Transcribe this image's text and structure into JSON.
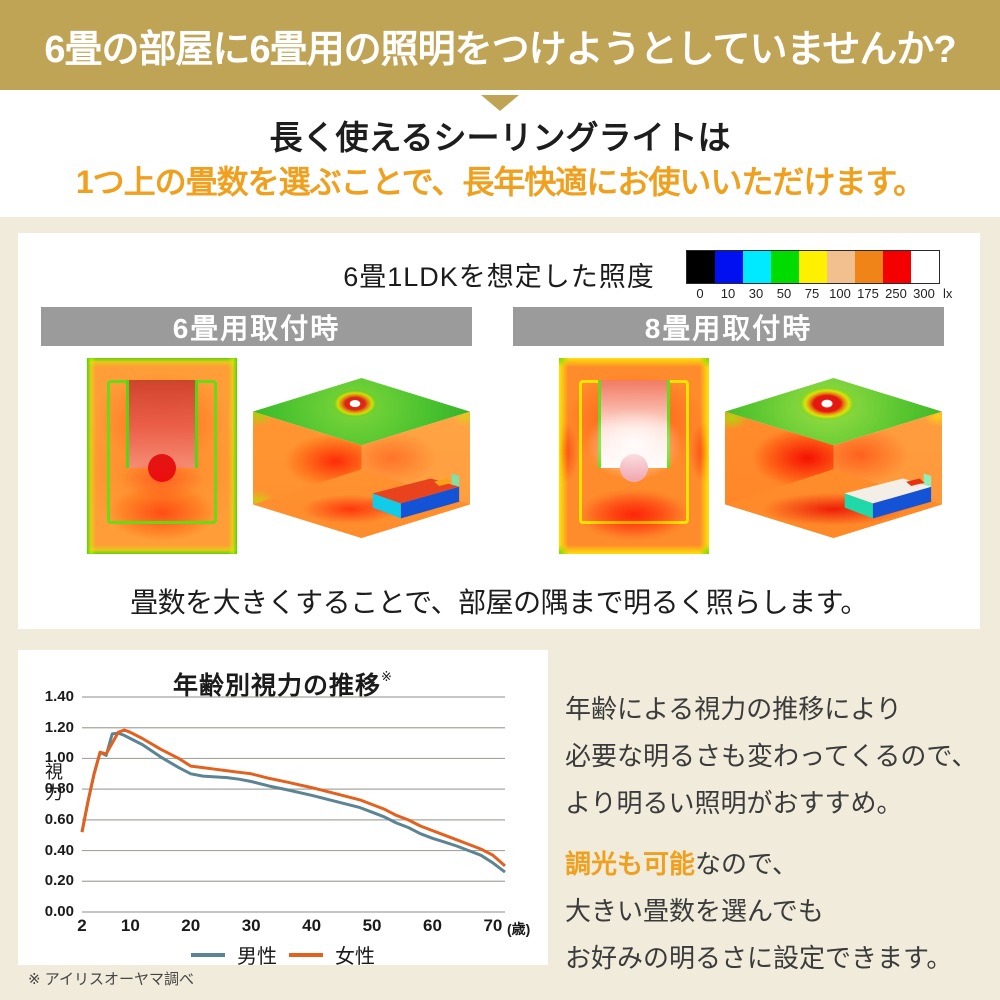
{
  "banner": {
    "text": "6畳の部屋に6畳用の照明をつけようとしていませんか?",
    "bg": "#bfa456",
    "text_color": "#ffffff"
  },
  "intro": {
    "line1": "長く使えるシーリングライトは",
    "line2": "1つ上の畳数を選ぶことで、長年快適にお使いいただけます。",
    "accent_color": "#efa01f"
  },
  "illuminance_card": {
    "title": "6畳1LDKを想定した照度",
    "lux_scale": {
      "unit": "lx",
      "stops": [
        {
          "color": "#000000",
          "label": "0"
        },
        {
          "color": "#0010f0",
          "label": "10"
        },
        {
          "color": "#00eaff",
          "label": "30"
        },
        {
          "color": "#00dc00",
          "label": "50"
        },
        {
          "color": "#fff000",
          "label": "75"
        },
        {
          "color": "#f2bf8e",
          "label": "100"
        },
        {
          "color": "#f08418",
          "label": "175"
        },
        {
          "color": "#f50000",
          "label": "250"
        },
        {
          "color": "#ffffff",
          "label": "300"
        }
      ]
    },
    "panels": [
      {
        "header": "6畳用取付時"
      },
      {
        "header": "8畳用取付時"
      }
    ],
    "caption": "畳数を大きくすることで、部屋の隅まで明るく照らします。"
  },
  "vision_section": {
    "note_lines": [
      "年齢による視力の推移により",
      "必要な明るさも変わってくるので、",
      "より明るい照明がおすすめ。"
    ],
    "note2_highlight": "調光も可能",
    "note2_rest": "なので、",
    "note2_lines": [
      "大きい畳数を選んでも",
      "お好みの明るさに設定できます。"
    ],
    "footnote": "※ アイリスオーヤマ調べ"
  },
  "chart_data": {
    "type": "line",
    "title": "年齢別視力の推移",
    "title_superscript": "※",
    "ylabel": "視力",
    "xlabel_suffix": "(歳)",
    "xlim": [
      2,
      72
    ],
    "ylim": [
      0,
      1.4
    ],
    "grid": "horizontal",
    "legend_position": "bottom",
    "x_ticks": [
      2,
      10,
      20,
      30,
      40,
      50,
      60,
      70
    ],
    "y_ticks": [
      "0.00",
      "0.20",
      "0.40",
      "0.60",
      "0.80",
      "1.00",
      "1.20",
      "1.40"
    ],
    "x": [
      2,
      3,
      4,
      5,
      6,
      7,
      8,
      9,
      10,
      12,
      15,
      18,
      20,
      22,
      24,
      26,
      28,
      30,
      33,
      36,
      40,
      44,
      48,
      50,
      52,
      54,
      56,
      58,
      60,
      62,
      64,
      66,
      68,
      70,
      72
    ],
    "series": [
      {
        "name": "男性",
        "color": "#5b8494",
        "values": [
          0.52,
          0.72,
          0.9,
          1.04,
          1.02,
          1.16,
          1.165,
          1.15,
          1.13,
          1.09,
          1.01,
          0.94,
          0.9,
          0.885,
          0.88,
          0.875,
          0.865,
          0.85,
          0.82,
          0.795,
          0.76,
          0.72,
          0.68,
          0.65,
          0.62,
          0.58,
          0.55,
          0.51,
          0.48,
          0.455,
          0.43,
          0.4,
          0.37,
          0.32,
          0.26
        ]
      },
      {
        "name": "女性",
        "color": "#e2611f",
        "values": [
          0.52,
          0.72,
          0.9,
          1.04,
          1.03,
          1.1,
          1.17,
          1.185,
          1.17,
          1.13,
          1.06,
          1.0,
          0.95,
          0.94,
          0.93,
          0.92,
          0.91,
          0.9,
          0.87,
          0.845,
          0.81,
          0.77,
          0.73,
          0.7,
          0.67,
          0.63,
          0.6,
          0.56,
          0.53,
          0.5,
          0.47,
          0.44,
          0.41,
          0.37,
          0.3
        ]
      }
    ]
  }
}
